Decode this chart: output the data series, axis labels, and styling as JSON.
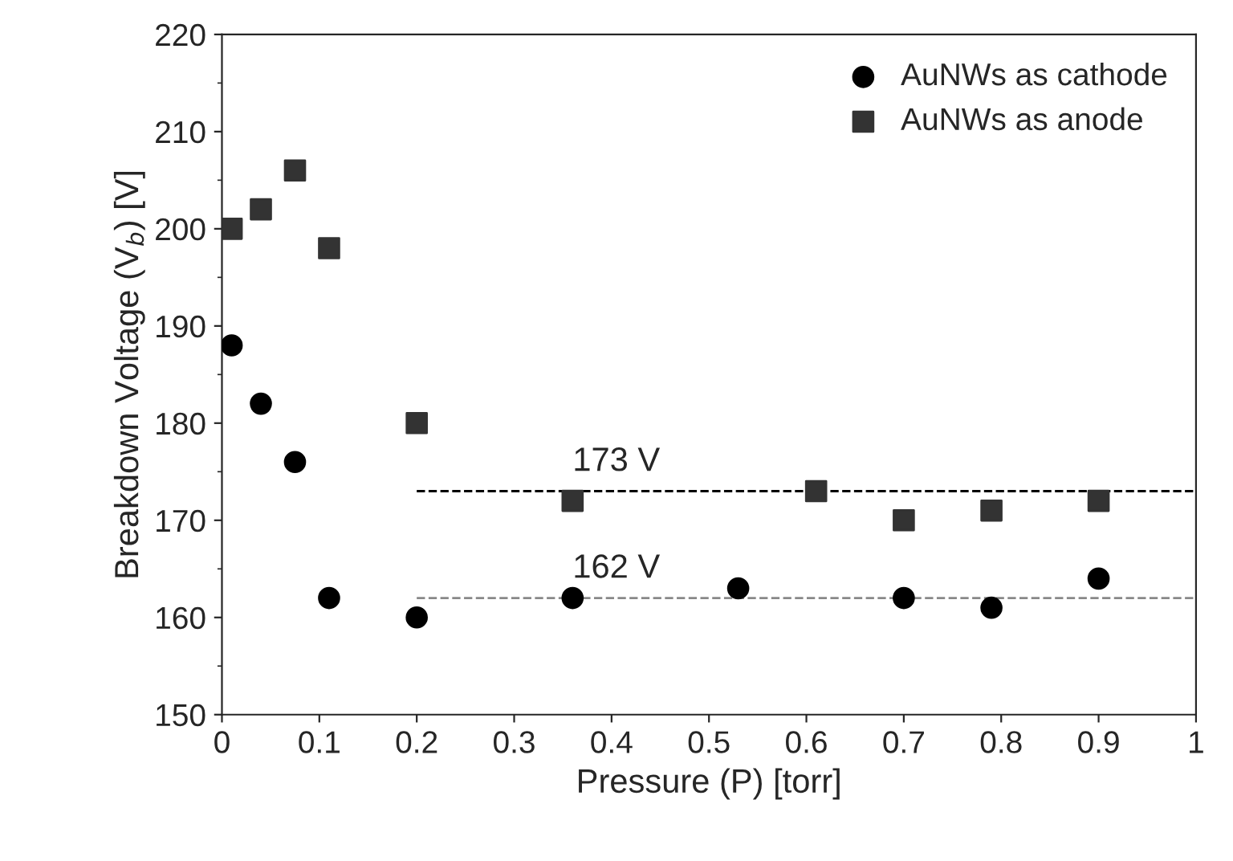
{
  "chart_data": {
    "type": "scatter",
    "xlabel": "Pressure (P) [torr]",
    "ylabel": "Breakdown Voltage (V$_{b}$) [V]",
    "xlim": [
      0,
      1
    ],
    "xticks": [
      0,
      0.1,
      0.2,
      0.3,
      0.4,
      0.5,
      0.6,
      0.7,
      0.8,
      0.9,
      1
    ],
    "ylim": [
      150,
      220
    ],
    "yticks": [
      150,
      160,
      170,
      180,
      190,
      200,
      210,
      220
    ],
    "grid": false,
    "legend": "top right",
    "series": [
      {
        "name": "AuNWs as cathode",
        "marker": "circle",
        "color": "#000000",
        "x": [
          0.01,
          0.04,
          0.075,
          0.11,
          0.2,
          0.36,
          0.53,
          0.7,
          0.79,
          0.9
        ],
        "values": [
          188,
          182,
          176,
          162,
          160,
          162,
          163,
          162,
          161,
          164
        ]
      },
      {
        "name": "AuNWs as anode",
        "marker": "square",
        "color": "#333333",
        "x": [
          0.01,
          0.04,
          0.075,
          0.11,
          0.2,
          0.36,
          0.61,
          0.7,
          0.79,
          0.9
        ],
        "values": [
          200,
          202,
          206,
          198,
          180,
          172,
          173,
          170,
          171,
          172
        ]
      },
      {
        "type": "line",
        "line_style": "dashed",
        "color": "#000000",
        "x": [
          0.2,
          1
        ],
        "values": [
          173,
          173
        ]
      },
      {
        "type": "line",
        "line_style": "dashed",
        "color": "#888888",
        "x": [
          0.2,
          1
        ],
        "values": [
          162,
          162
        ]
      }
    ],
    "annotations": [
      {
        "text": "173 V",
        "x": 0.36,
        "y": 173
      },
      {
        "text": "162 V",
        "x": 0.36,
        "y": 162
      }
    ]
  }
}
